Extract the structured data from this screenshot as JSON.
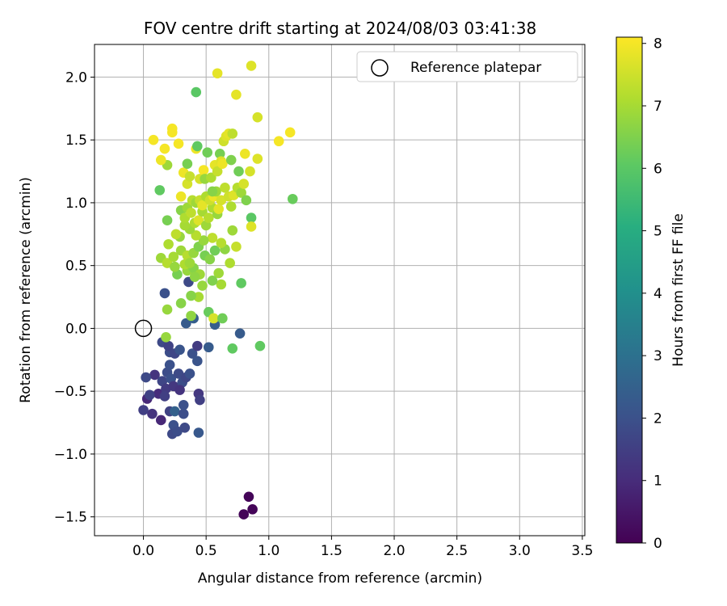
{
  "chart_data": {
    "type": "scatter",
    "title": "FOV centre drift starting at 2024/08/03 03:41:38",
    "xlabel": "Angular distance from reference (arcmin)",
    "ylabel": "Rotation from reference (arcmin)",
    "xlim": [
      -0.39,
      3.52
    ],
    "ylim": [
      -1.65,
      2.26
    ],
    "x_ticks": [
      0.0,
      0.5,
      1.0,
      1.5,
      2.0,
      2.5,
      3.0,
      3.5
    ],
    "x_tick_labels": [
      "0.0",
      "0.5",
      "1.0",
      "1.5",
      "2.0",
      "2.5",
      "3.0",
      "3.5"
    ],
    "y_ticks": [
      -1.5,
      -1.0,
      -0.5,
      0.0,
      0.5,
      1.0,
      1.5,
      2.0
    ],
    "y_tick_labels": [
      "−1.5",
      "−1.0",
      "−0.5",
      "0.0",
      "0.5",
      "1.0",
      "1.5",
      "2.0"
    ],
    "grid": true,
    "colormap": "viridis",
    "colorbar": {
      "label": "Hours from first FF file",
      "range": [
        0,
        8.1
      ],
      "ticks": [
        0,
        1,
        2,
        3,
        4,
        5,
        6,
        7,
        8
      ],
      "tick_labels": [
        "0",
        "1",
        "2",
        "3",
        "4",
        "5",
        "6",
        "7",
        "8"
      ]
    },
    "legend": {
      "position": "top-right",
      "label": "Reference platepar"
    },
    "reference_point": {
      "x": 0.0,
      "y": 0.0
    },
    "points": [
      {
        "x": 0.84,
        "y": -1.34,
        "c": 0.1
      },
      {
        "x": 0.8,
        "y": -1.48,
        "c": 0.1
      },
      {
        "x": 0.87,
        "y": -1.44,
        "c": 0.1
      },
      {
        "x": 0.09,
        "y": -0.37,
        "c": 1.2
      },
      {
        "x": 0.12,
        "y": -0.52,
        "c": 1.0
      },
      {
        "x": 0.03,
        "y": -0.56,
        "c": 0.9
      },
      {
        "x": 0.07,
        "y": -0.68,
        "c": 1.2
      },
      {
        "x": 0.14,
        "y": -0.73,
        "c": 0.9
      },
      {
        "x": 0.0,
        "y": -0.65,
        "c": 1.5
      },
      {
        "x": 0.02,
        "y": -0.39,
        "c": 1.8
      },
      {
        "x": 0.05,
        "y": -0.53,
        "c": 1.6
      },
      {
        "x": 0.15,
        "y": -0.42,
        "c": 1.7
      },
      {
        "x": 0.18,
        "y": -0.48,
        "c": 1.4
      },
      {
        "x": 0.17,
        "y": -0.54,
        "c": 1.5
      },
      {
        "x": 0.19,
        "y": -0.35,
        "c": 1.9
      },
      {
        "x": 0.22,
        "y": -0.4,
        "c": 2.0
      },
      {
        "x": 0.24,
        "y": -0.46,
        "c": 1.3
      },
      {
        "x": 0.21,
        "y": -0.29,
        "c": 2.0
      },
      {
        "x": 0.21,
        "y": -0.19,
        "c": 1.9
      },
      {
        "x": 0.15,
        "y": -0.11,
        "c": 1.8
      },
      {
        "x": 0.2,
        "y": -0.14,
        "c": 1.6
      },
      {
        "x": 0.25,
        "y": -0.2,
        "c": 1.7
      },
      {
        "x": 0.29,
        "y": -0.17,
        "c": 2.1
      },
      {
        "x": 0.28,
        "y": -0.36,
        "c": 1.8
      },
      {
        "x": 0.31,
        "y": -0.43,
        "c": 1.9
      },
      {
        "x": 0.34,
        "y": -0.39,
        "c": 1.7
      },
      {
        "x": 0.37,
        "y": -0.36,
        "c": 2.0
      },
      {
        "x": 0.29,
        "y": -0.49,
        "c": 1.2
      },
      {
        "x": 0.21,
        "y": -0.66,
        "c": 1.6
      },
      {
        "x": 0.25,
        "y": -0.66,
        "c": 2.5
      },
      {
        "x": 0.24,
        "y": -0.77,
        "c": 2.0
      },
      {
        "x": 0.23,
        "y": -0.84,
        "c": 1.8
      },
      {
        "x": 0.27,
        "y": -0.82,
        "c": 1.9
      },
      {
        "x": 0.33,
        "y": -0.79,
        "c": 1.8
      },
      {
        "x": 0.32,
        "y": -0.68,
        "c": 1.9
      },
      {
        "x": 0.32,
        "y": -0.61,
        "c": 2.0
      },
      {
        "x": 0.44,
        "y": -0.52,
        "c": 1.3
      },
      {
        "x": 0.45,
        "y": -0.57,
        "c": 1.5
      },
      {
        "x": 0.44,
        "y": -0.83,
        "c": 2.2
      },
      {
        "x": 0.39,
        "y": -0.2,
        "c": 2.0
      },
      {
        "x": 0.43,
        "y": -0.26,
        "c": 2.1
      },
      {
        "x": 0.43,
        "y": -0.14,
        "c": 1.4
      },
      {
        "x": 0.52,
        "y": -0.15,
        "c": 2.3
      },
      {
        "x": 0.77,
        "y": -0.04,
        "c": 2.3
      },
      {
        "x": 0.17,
        "y": 0.28,
        "c": 2.0
      },
      {
        "x": 0.34,
        "y": 0.04,
        "c": 2.3
      },
      {
        "x": 0.4,
        "y": 0.08,
        "c": 2.4
      },
      {
        "x": 0.57,
        "y": 0.03,
        "c": 2.4
      },
      {
        "x": 0.36,
        "y": 0.37,
        "c": 1.8
      },
      {
        "x": 0.18,
        "y": -0.07,
        "c": 6.8
      },
      {
        "x": 0.19,
        "y": 0.15,
        "c": 6.8
      },
      {
        "x": 0.3,
        "y": 0.2,
        "c": 6.6
      },
      {
        "x": 0.38,
        "y": 0.1,
        "c": 6.7
      },
      {
        "x": 0.52,
        "y": 0.13,
        "c": 6.2
      },
      {
        "x": 0.56,
        "y": 0.08,
        "c": 7.6
      },
      {
        "x": 0.63,
        "y": 0.08,
        "c": 6.3
      },
      {
        "x": 0.71,
        "y": -0.16,
        "c": 6.1
      },
      {
        "x": 0.93,
        "y": -0.14,
        "c": 6.1
      },
      {
        "x": 0.78,
        "y": 0.36,
        "c": 6.1
      },
      {
        "x": 0.44,
        "y": 0.25,
        "c": 7.0
      },
      {
        "x": 0.38,
        "y": 0.26,
        "c": 6.6
      },
      {
        "x": 0.47,
        "y": 0.34,
        "c": 6.8
      },
      {
        "x": 0.6,
        "y": 0.44,
        "c": 6.9
      },
      {
        "x": 0.62,
        "y": 0.35,
        "c": 7.0
      },
      {
        "x": 0.55,
        "y": 0.38,
        "c": 6.5
      },
      {
        "x": 0.27,
        "y": 0.43,
        "c": 6.4
      },
      {
        "x": 0.35,
        "y": 0.46,
        "c": 6.8
      },
      {
        "x": 0.4,
        "y": 0.48,
        "c": 6.6
      },
      {
        "x": 0.45,
        "y": 0.43,
        "c": 6.9
      },
      {
        "x": 0.14,
        "y": 0.56,
        "c": 6.9
      },
      {
        "x": 0.19,
        "y": 0.52,
        "c": 7.2
      },
      {
        "x": 0.2,
        "y": 0.67,
        "c": 7.1
      },
      {
        "x": 0.24,
        "y": 0.57,
        "c": 7.0
      },
      {
        "x": 0.25,
        "y": 0.49,
        "c": 6.8
      },
      {
        "x": 0.3,
        "y": 0.62,
        "c": 6.9
      },
      {
        "x": 0.33,
        "y": 0.51,
        "c": 7.1
      },
      {
        "x": 0.35,
        "y": 0.58,
        "c": 7.2
      },
      {
        "x": 0.37,
        "y": 0.52,
        "c": 6.9
      },
      {
        "x": 0.4,
        "y": 0.6,
        "c": 6.8
      },
      {
        "x": 0.41,
        "y": 0.41,
        "c": 6.7
      },
      {
        "x": 0.44,
        "y": 0.65,
        "c": 6.5
      },
      {
        "x": 0.49,
        "y": 0.58,
        "c": 6.4
      },
      {
        "x": 0.53,
        "y": 0.55,
        "c": 6.6
      },
      {
        "x": 0.57,
        "y": 0.62,
        "c": 6.3
      },
      {
        "x": 0.65,
        "y": 0.63,
        "c": 6.7
      },
      {
        "x": 0.69,
        "y": 0.52,
        "c": 7.1
      },
      {
        "x": 0.74,
        "y": 0.65,
        "c": 7.4
      },
      {
        "x": 0.71,
        "y": 0.78,
        "c": 6.9
      },
      {
        "x": 0.62,
        "y": 0.68,
        "c": 7.2
      },
      {
        "x": 0.55,
        "y": 0.72,
        "c": 7.3
      },
      {
        "x": 0.48,
        "y": 0.7,
        "c": 6.8
      },
      {
        "x": 0.42,
        "y": 0.74,
        "c": 7.2
      },
      {
        "x": 0.37,
        "y": 0.79,
        "c": 6.9
      },
      {
        "x": 0.33,
        "y": 0.82,
        "c": 7.0
      },
      {
        "x": 0.29,
        "y": 0.73,
        "c": 6.8
      },
      {
        "x": 0.26,
        "y": 0.75,
        "c": 7.3
      },
      {
        "x": 0.19,
        "y": 0.86,
        "c": 6.4
      },
      {
        "x": 0.3,
        "y": 0.94,
        "c": 6.6
      },
      {
        "x": 0.33,
        "y": 0.88,
        "c": 7.1
      },
      {
        "x": 0.35,
        "y": 0.96,
        "c": 6.9
      },
      {
        "x": 0.38,
        "y": 0.92,
        "c": 7.3
      },
      {
        "x": 0.41,
        "y": 0.84,
        "c": 7.1
      },
      {
        "x": 0.44,
        "y": 0.86,
        "c": 7.7
      },
      {
        "x": 0.47,
        "y": 0.93,
        "c": 7.0
      },
      {
        "x": 0.5,
        "y": 0.82,
        "c": 6.9
      },
      {
        "x": 0.52,
        "y": 0.88,
        "c": 7.2
      },
      {
        "x": 0.55,
        "y": 0.96,
        "c": 7.1
      },
      {
        "x": 0.59,
        "y": 0.91,
        "c": 6.8
      },
      {
        "x": 0.86,
        "y": 0.88,
        "c": 6.0
      },
      {
        "x": 0.86,
        "y": 0.81,
        "c": 7.7
      },
      {
        "x": 0.13,
        "y": 1.1,
        "c": 6.1
      },
      {
        "x": 0.3,
        "y": 1.05,
        "c": 7.9
      },
      {
        "x": 0.35,
        "y": 1.15,
        "c": 7.6
      },
      {
        "x": 0.39,
        "y": 1.02,
        "c": 7.2
      },
      {
        "x": 0.42,
        "y": 1.0,
        "c": 6.9
      },
      {
        "x": 0.45,
        "y": 1.02,
        "c": 7.4
      },
      {
        "x": 0.47,
        "y": 0.98,
        "c": 7.8
      },
      {
        "x": 0.5,
        "y": 1.05,
        "c": 7.1
      },
      {
        "x": 0.53,
        "y": 1.02,
        "c": 7.5
      },
      {
        "x": 0.56,
        "y": 1.05,
        "c": 7.9
      },
      {
        "x": 0.58,
        "y": 1.09,
        "c": 6.9
      },
      {
        "x": 0.6,
        "y": 0.95,
        "c": 7.8
      },
      {
        "x": 0.62,
        "y": 1.02,
        "c": 7.6
      },
      {
        "x": 0.65,
        "y": 1.12,
        "c": 7.3
      },
      {
        "x": 0.68,
        "y": 1.05,
        "c": 7.5
      },
      {
        "x": 0.7,
        "y": 0.97,
        "c": 7.1
      },
      {
        "x": 0.72,
        "y": 1.06,
        "c": 7.7
      },
      {
        "x": 0.75,
        "y": 1.12,
        "c": 7.2
      },
      {
        "x": 0.78,
        "y": 1.08,
        "c": 6.9
      },
      {
        "x": 0.8,
        "y": 1.15,
        "c": 7.6
      },
      {
        "x": 0.82,
        "y": 1.02,
        "c": 6.5
      },
      {
        "x": 1.19,
        "y": 1.03,
        "c": 6.2
      },
      {
        "x": 0.19,
        "y": 1.3,
        "c": 6.9
      },
      {
        "x": 0.17,
        "y": 1.43,
        "c": 8.0
      },
      {
        "x": 0.14,
        "y": 1.34,
        "c": 7.9
      },
      {
        "x": 0.08,
        "y": 1.5,
        "c": 8.0
      },
      {
        "x": 0.23,
        "y": 1.56,
        "c": 8.0
      },
      {
        "x": 0.23,
        "y": 1.59,
        "c": 8.0
      },
      {
        "x": 0.28,
        "y": 1.47,
        "c": 8.0
      },
      {
        "x": 0.32,
        "y": 1.24,
        "c": 7.9
      },
      {
        "x": 0.35,
        "y": 1.31,
        "c": 6.4
      },
      {
        "x": 0.37,
        "y": 1.21,
        "c": 7.4
      },
      {
        "x": 0.42,
        "y": 1.43,
        "c": 7.9
      },
      {
        "x": 0.43,
        "y": 1.45,
        "c": 6.1
      },
      {
        "x": 0.45,
        "y": 1.19,
        "c": 7.6
      },
      {
        "x": 0.48,
        "y": 1.26,
        "c": 8.0
      },
      {
        "x": 0.49,
        "y": 1.19,
        "c": 6.8
      },
      {
        "x": 0.51,
        "y": 1.4,
        "c": 6.3
      },
      {
        "x": 0.54,
        "y": 1.2,
        "c": 7.1
      },
      {
        "x": 0.55,
        "y": 1.09,
        "c": 6.6
      },
      {
        "x": 0.57,
        "y": 1.3,
        "c": 7.8
      },
      {
        "x": 0.59,
        "y": 1.25,
        "c": 7.4
      },
      {
        "x": 0.61,
        "y": 1.39,
        "c": 6.4
      },
      {
        "x": 0.62,
        "y": 1.33,
        "c": 7.7
      },
      {
        "x": 0.63,
        "y": 1.31,
        "c": 7.9
      },
      {
        "x": 0.64,
        "y": 1.49,
        "c": 7.5
      },
      {
        "x": 0.66,
        "y": 1.53,
        "c": 7.7
      },
      {
        "x": 0.68,
        "y": 1.55,
        "c": 7.8
      },
      {
        "x": 0.71,
        "y": 1.55,
        "c": 7.3
      },
      {
        "x": 0.7,
        "y": 1.34,
        "c": 6.5
      },
      {
        "x": 0.76,
        "y": 1.25,
        "c": 6.3
      },
      {
        "x": 0.81,
        "y": 1.39,
        "c": 7.9
      },
      {
        "x": 0.85,
        "y": 1.25,
        "c": 7.6
      },
      {
        "x": 0.91,
        "y": 1.35,
        "c": 7.7
      },
      {
        "x": 0.91,
        "y": 1.68,
        "c": 7.6
      },
      {
        "x": 1.08,
        "y": 1.49,
        "c": 8.0
      },
      {
        "x": 1.17,
        "y": 1.56,
        "c": 8.0
      },
      {
        "x": 0.42,
        "y": 1.88,
        "c": 6.0
      },
      {
        "x": 0.59,
        "y": 2.03,
        "c": 7.8
      },
      {
        "x": 0.74,
        "y": 1.86,
        "c": 7.8
      },
      {
        "x": 0.86,
        "y": 2.09,
        "c": 7.7
      }
    ]
  }
}
